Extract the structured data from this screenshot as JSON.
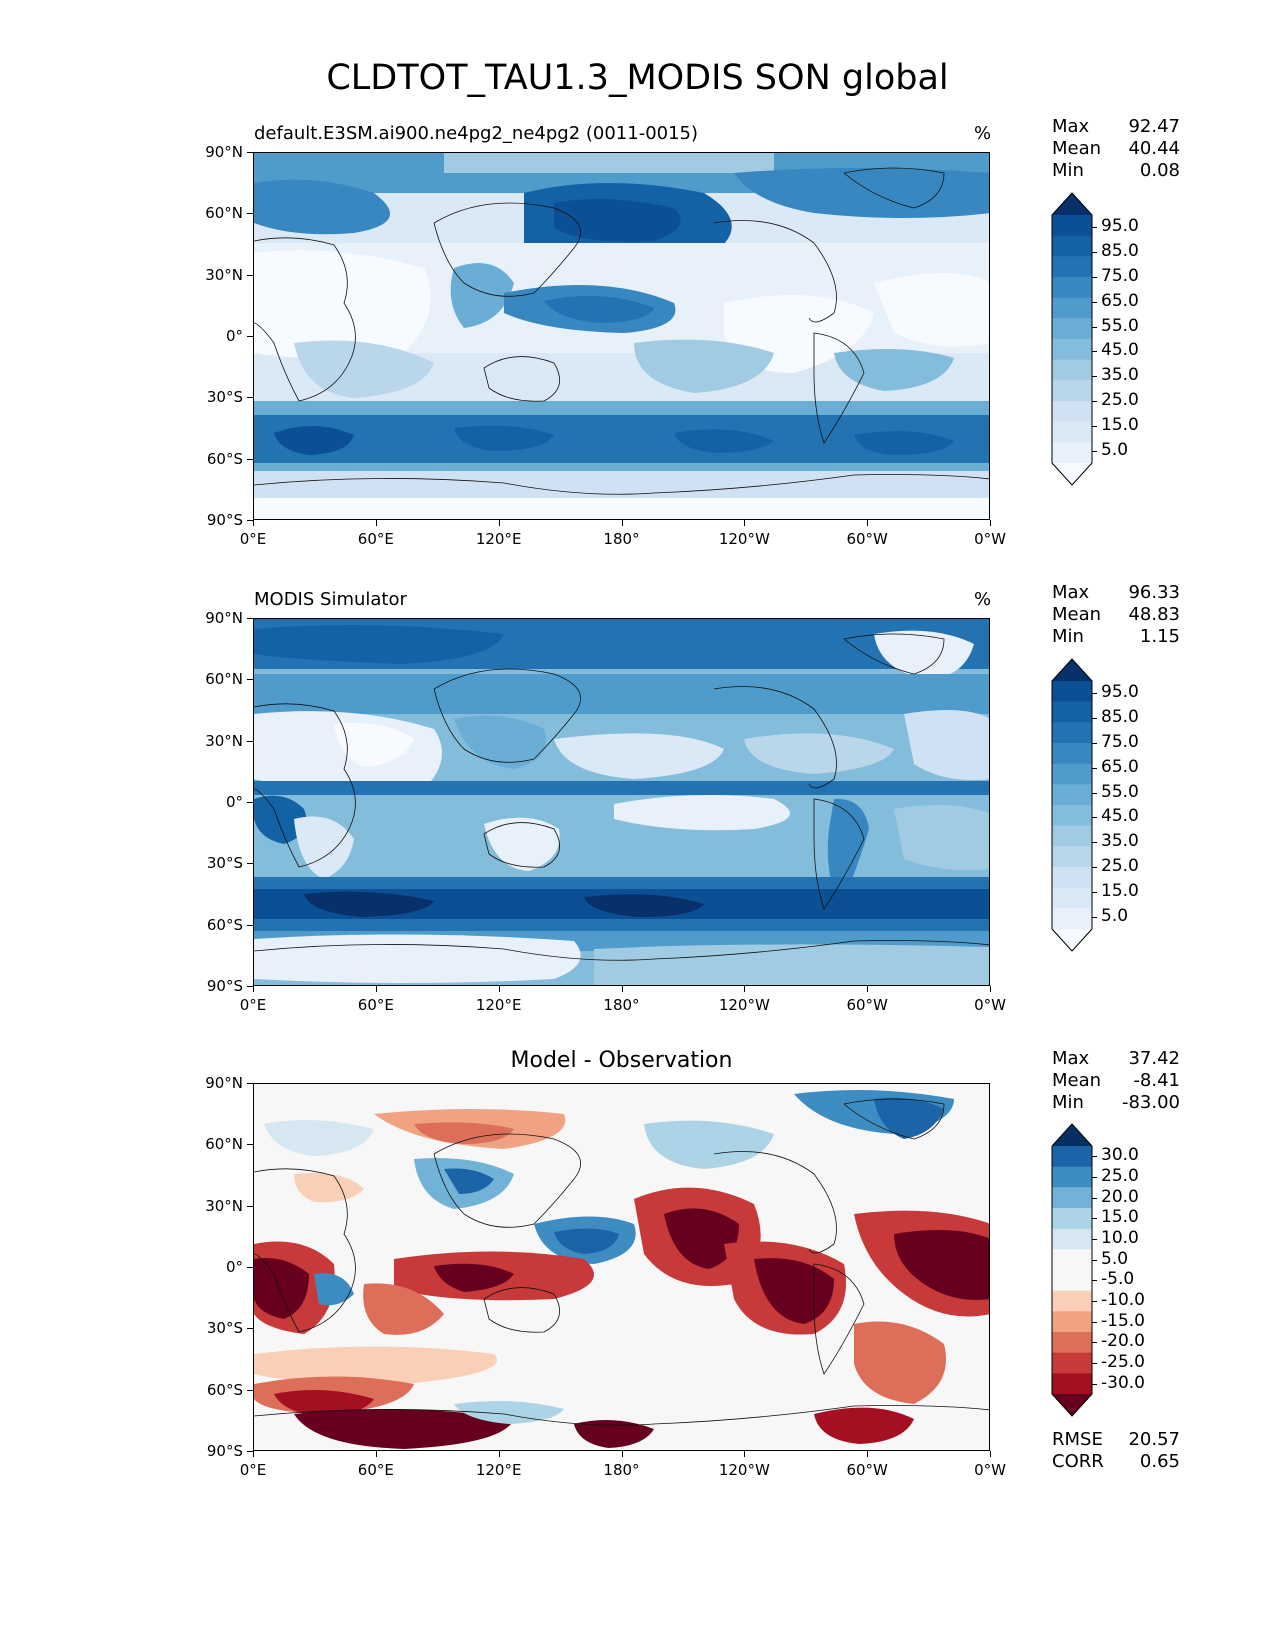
{
  "title": "CLDTOT_TAU1.3_MODIS SON global",
  "colors": {
    "seq": [
      "#f7fbff",
      "#e8f1fa",
      "#dbe9f6",
      "#cfe1f2",
      "#bad6eb",
      "#a0cbe2",
      "#84bcdb",
      "#6aaed6",
      "#4f9bcb",
      "#3987c0",
      "#2373b3",
      "#1462a6",
      "#0b4f94",
      "#08306b"
    ],
    "div": [
      "#67001f",
      "#a50f22",
      "#c8393a",
      "#dd6e59",
      "#f0a283",
      "#f9cfb7",
      "#f7f7f7",
      "#f7f7f7",
      "#d6e7f1",
      "#add3e6",
      "#72b2d6",
      "#3d8dc3",
      "#1a64a7",
      "#053061"
    ]
  },
  "xticks": [
    "0°E",
    "60°E",
    "120°E",
    "180°",
    "120°W",
    "60°W",
    "0°W"
  ],
  "yticks": [
    "90°N",
    "60°N",
    "30°N",
    "0°",
    "30°S",
    "60°S",
    "90°S"
  ],
  "panels": [
    {
      "title": "default.E3SM.ai900.ne4pg2_ne4pg2 (0011-0015)",
      "units": "%",
      "stats": [
        {
          "label": "Max",
          "value": "92.47"
        },
        {
          "label": "Mean",
          "value": "40.44"
        },
        {
          "label": "Min",
          "value": "0.08"
        }
      ],
      "colorbar_labels": [
        "95.0",
        "85.0",
        "75.0",
        "65.0",
        "55.0",
        "45.0",
        "35.0",
        "25.0",
        "15.0",
        "5.0"
      ]
    },
    {
      "title": "MODIS Simulator",
      "units": "%",
      "stats": [
        {
          "label": "Max",
          "value": "96.33"
        },
        {
          "label": "Mean",
          "value": "48.83"
        },
        {
          "label": "Min",
          "value": "1.15"
        }
      ],
      "colorbar_labels": [
        "95.0",
        "85.0",
        "75.0",
        "65.0",
        "55.0",
        "45.0",
        "35.0",
        "25.0",
        "15.0",
        "5.0"
      ]
    },
    {
      "title": "Model - Observation",
      "units": "",
      "stats": [
        {
          "label": "Max",
          "value": "37.42"
        },
        {
          "label": "Mean",
          "value": "-8.41"
        },
        {
          "label": "Min",
          "value": "-83.00"
        }
      ],
      "colorbar_labels": [
        "30.0",
        "25.0",
        "20.0",
        "15.0",
        "10.0",
        "5.0",
        "-5.0",
        "-10.0",
        "-15.0",
        "-20.0",
        "-25.0",
        "-30.0"
      ],
      "metrics": [
        {
          "label": "RMSE",
          "value": "20.57"
        },
        {
          "label": "CORR",
          "value": "0.65"
        }
      ]
    }
  ]
}
